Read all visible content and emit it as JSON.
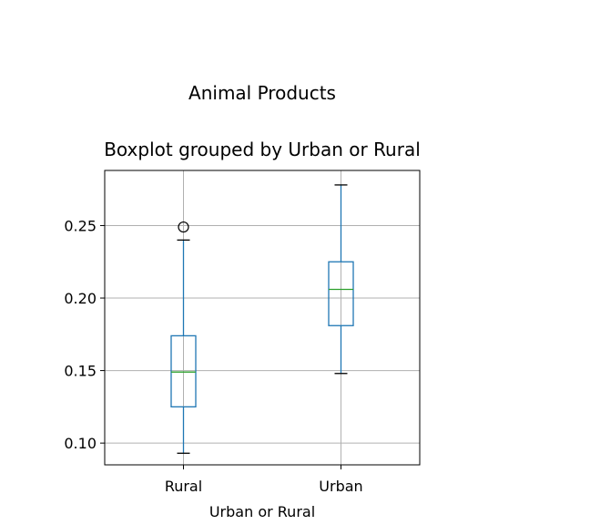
{
  "chart_data": {
    "type": "boxplot",
    "suptitle": "Animal Products",
    "title": "Boxplot grouped by Urban or Rural",
    "xlabel": "Urban or Rural",
    "ylabel": "",
    "ylim": [
      0.085,
      0.288
    ],
    "yticks": [
      0.1,
      0.15,
      0.2,
      0.25
    ],
    "ytick_labels": [
      "0.10",
      "0.15",
      "0.20",
      "0.25"
    ],
    "grid": true,
    "categories": [
      "Rural",
      "Urban"
    ],
    "boxes": [
      {
        "name": "Rural",
        "whisker_low": 0.093,
        "q1": 0.125,
        "median": 0.149,
        "q3": 0.174,
        "whisker_high": 0.24,
        "outliers": [
          0.249
        ]
      },
      {
        "name": "Urban",
        "whisker_low": 0.148,
        "q1": 0.181,
        "median": 0.206,
        "q3": 0.225,
        "whisker_high": 0.278,
        "outliers": []
      }
    ],
    "colors": {
      "box": "#1f77b4",
      "median": "#2ca02c",
      "cap": "#000000",
      "grid": "#b0b0b0"
    }
  }
}
